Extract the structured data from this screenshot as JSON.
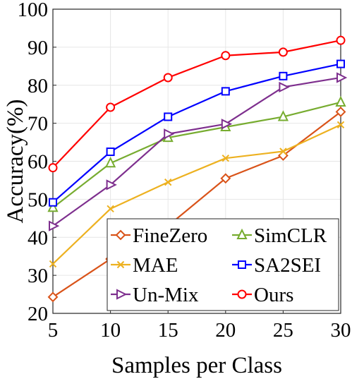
{
  "chart_data": {
    "type": "line",
    "xlabel": "Samples per Class",
    "ylabel": "Accuracy(%)",
    "xlim": [
      5,
      30
    ],
    "ylim": [
      20,
      100
    ],
    "x_ticks": [
      5,
      10,
      15,
      20,
      25,
      30
    ],
    "y_ticks": [
      20,
      30,
      40,
      50,
      60,
      70,
      80,
      90,
      100
    ],
    "grid": true,
    "legend_position": "bottom-right",
    "x": [
      5,
      10,
      15,
      20,
      25,
      30
    ],
    "series": [
      {
        "name": "FineZero",
        "color": "#d95319",
        "marker": "diamond",
        "values": [
          24.3,
          34.3,
          43.0,
          55.5,
          61.5,
          73.0
        ]
      },
      {
        "name": "SimCLR",
        "color": "#77ac30",
        "marker": "triangle-up",
        "values": [
          47.8,
          59.5,
          66.2,
          69.0,
          71.7,
          75.5
        ]
      },
      {
        "name": "MAE",
        "color": "#edb120",
        "marker": "x",
        "values": [
          33.0,
          47.5,
          54.5,
          60.8,
          62.6,
          69.6
        ]
      },
      {
        "name": "SA2SEI",
        "color": "#0000ff",
        "marker": "square",
        "values": [
          49.2,
          62.5,
          71.7,
          78.4,
          82.4,
          85.6
        ]
      },
      {
        "name": "Un-Mix",
        "color": "#7e2f8e",
        "marker": "triangle-right",
        "values": [
          43.0,
          53.8,
          67.2,
          69.8,
          79.5,
          82.0
        ]
      },
      {
        "name": "Ours",
        "color": "#ff0000",
        "marker": "circle",
        "values": [
          58.3,
          74.2,
          82.0,
          87.8,
          88.7,
          91.8
        ]
      }
    ]
  }
}
